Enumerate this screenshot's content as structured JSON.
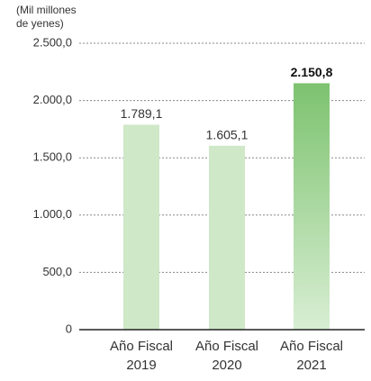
{
  "chart_data": {
    "type": "bar",
    "y_label": [
      "(Mil millones",
      "de yenes)"
    ],
    "categories": [
      [
        "Año Fiscal",
        "2019"
      ],
      [
        "Año Fiscal",
        "2020"
      ],
      [
        "Año Fiscal",
        "2021"
      ]
    ],
    "values": [
      1789.1,
      1605.1,
      2150.8
    ],
    "value_labels": [
      "1.789,1",
      "1.605,1",
      "2.150,8"
    ],
    "color": "#cfe8c8",
    "highlight_color": "#7dc36f",
    "highlight_index": 2,
    "ylim": [
      0,
      2500
    ],
    "yticks": [
      0,
      {
        "value": 500,
        "label": "500,0"
      },
      {
        "value": 1000,
        "label": "1.000,0"
      },
      {
        "value": 1500,
        "label": "1.500,0"
      },
      {
        "value": 2000,
        "label": "2.000,0"
      },
      {
        "value": 2500,
        "label": "2.500,0"
      }
    ],
    "grid": true
  }
}
